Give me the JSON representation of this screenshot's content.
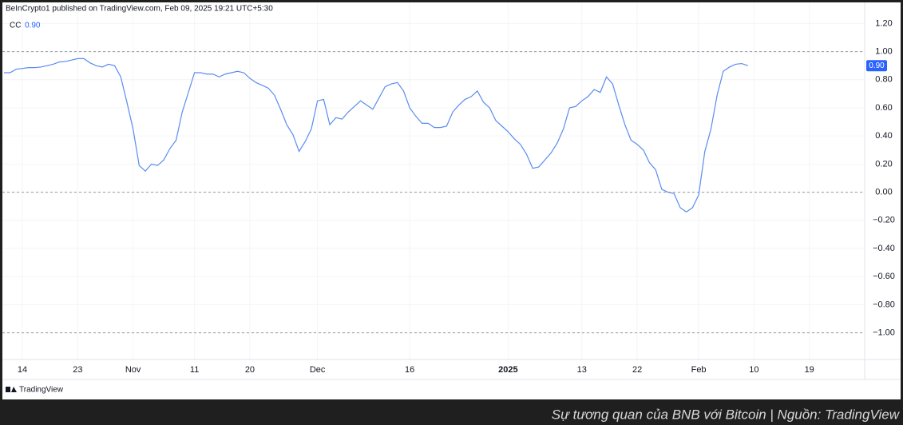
{
  "chart_data": {
    "type": "line",
    "title": "BeInCrypto1 published on TradingView.com, Feb 09, 2025 19:21 UTC+5:30",
    "caption": "Sự tương quan của BNB với Bitcoin | Nguồn: TradingView",
    "brand": "TradingView",
    "series": [
      {
        "name": "CC",
        "color": "#5a8cf0",
        "current_value_label": "0.90",
        "x": [
          -3,
          -2,
          -1,
          0,
          1,
          2,
          3,
          4,
          5,
          6,
          7,
          8,
          9,
          10,
          11,
          12,
          13,
          14,
          15,
          16,
          17,
          18,
          19,
          20,
          21,
          22,
          23,
          24,
          25,
          26,
          27,
          28,
          29,
          30,
          31,
          32,
          33,
          34,
          35,
          36,
          37,
          38,
          39,
          40,
          41,
          42,
          43,
          44,
          45,
          46,
          47,
          48,
          49,
          50,
          51,
          52,
          53,
          54,
          55,
          56,
          57,
          58,
          59,
          60,
          61,
          62,
          63,
          64,
          65,
          66,
          67,
          68,
          69,
          70,
          71,
          72,
          73,
          74,
          75,
          76,
          77,
          78,
          79,
          80,
          81,
          82,
          83,
          84,
          85,
          86,
          87,
          88,
          89,
          90,
          91,
          92,
          93,
          94,
          95,
          96,
          97,
          98,
          99,
          100,
          101,
          102,
          103,
          104,
          105,
          106,
          107,
          108,
          109,
          110,
          111,
          112,
          113,
          114,
          115,
          116,
          117,
          118
        ],
        "values": [
          0.85,
          0.85,
          0.875,
          0.88,
          0.886,
          0.886,
          0.89,
          0.9,
          0.91,
          0.926,
          0.93,
          0.94,
          0.95,
          0.95,
          0.92,
          0.9,
          0.89,
          0.91,
          0.9,
          0.82,
          0.64,
          0.45,
          0.19,
          0.15,
          0.2,
          0.19,
          0.23,
          0.31,
          0.37,
          0.57,
          0.71,
          0.85,
          0.85,
          0.84,
          0.84,
          0.82,
          0.84,
          0.85,
          0.86,
          0.85,
          0.81,
          0.78,
          0.76,
          0.74,
          0.69,
          0.59,
          0.48,
          0.41,
          0.29,
          0.36,
          0.45,
          0.65,
          0.66,
          0.48,
          0.53,
          0.52,
          0.57,
          0.61,
          0.65,
          0.62,
          0.59,
          0.67,
          0.75,
          0.77,
          0.78,
          0.72,
          0.6,
          0.54,
          0.49,
          0.49,
          0.46,
          0.46,
          0.47,
          0.57,
          0.62,
          0.66,
          0.68,
          0.72,
          0.64,
          0.6,
          0.51,
          0.47,
          0.43,
          0.38,
          0.34,
          0.27,
          0.17,
          0.18,
          0.23,
          0.28,
          0.35,
          0.45,
          0.6,
          0.61,
          0.65,
          0.68,
          0.73,
          0.71,
          0.82,
          0.77,
          0.62,
          0.48,
          0.37,
          0.34,
          0.3,
          0.21,
          0.16,
          0.02,
          0,
          -0.01,
          -0.11,
          -0.14,
          -0.11,
          -0.02,
          0.29,
          0.45,
          0.69,
          0.86,
          0.89,
          0.91,
          0.915,
          0.9
        ]
      }
    ],
    "xlim": [
      -3.25,
      137
    ],
    "xticks": [
      {
        "value": 0,
        "label": "14"
      },
      {
        "value": 9,
        "label": "23"
      },
      {
        "value": 18,
        "label": "Nov"
      },
      {
        "value": 28,
        "label": "11"
      },
      {
        "value": 37,
        "label": "20"
      },
      {
        "value": 48,
        "label": "Dec"
      },
      {
        "value": 63,
        "label": "16"
      },
      {
        "value": 79,
        "label": "2025"
      },
      {
        "value": 91,
        "label": "13"
      },
      {
        "value": 100,
        "label": "22"
      },
      {
        "value": 110,
        "label": "Feb"
      },
      {
        "value": 119,
        "label": "10"
      },
      {
        "value": 128,
        "label": "19"
      }
    ],
    "bold_xtick": "2025",
    "ylim": [
      -1.19,
      1.35
    ],
    "yticks": [
      {
        "value": 1.2,
        "label": "1.20"
      },
      {
        "value": 1,
        "label": "1.00"
      },
      {
        "value": 0.8,
        "label": "0.80"
      },
      {
        "value": 0.6,
        "label": "0.60"
      },
      {
        "value": 0.4,
        "label": "0.40"
      },
      {
        "value": 0.2,
        "label": "0.20"
      },
      {
        "value": 0,
        "label": "0.00"
      },
      {
        "value": -0.2,
        "label": "−0.20"
      },
      {
        "value": -0.4,
        "label": "−0.40"
      },
      {
        "value": -0.6,
        "label": "−0.60"
      },
      {
        "value": -0.8,
        "label": "−0.80"
      },
      {
        "value": -1,
        "label": "−1.00"
      }
    ],
    "dashed_levels": [
      1,
      0,
      -1
    ],
    "grid": true
  }
}
